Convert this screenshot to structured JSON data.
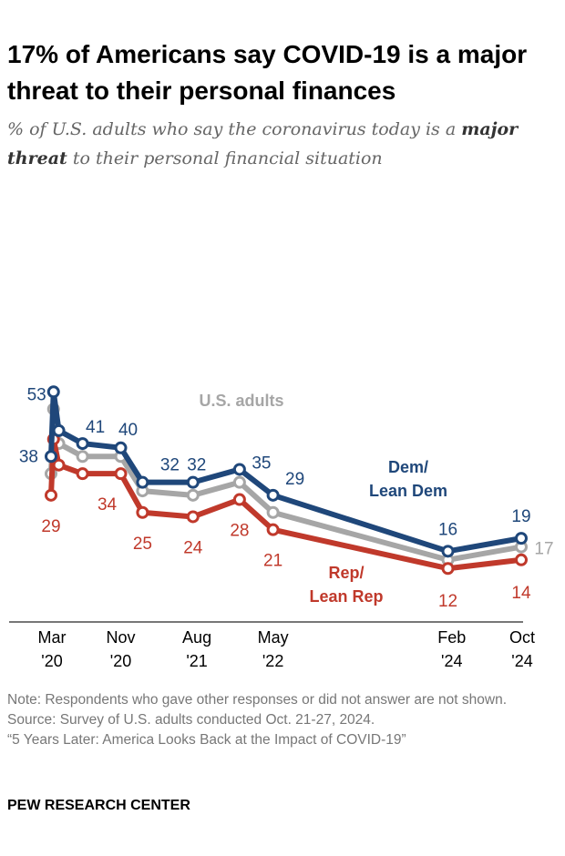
{
  "title": "17% of Americans say COVID-19 is a major threat to their personal finances",
  "subtitle": {
    "part1": "% of U.S. adults who say the coronavirus today is a",
    "bold": "major threat",
    "part2": "to their personal financial situation"
  },
  "chart_data": {
    "type": "line",
    "title": "17% of Americans say COVID-19 is a major threat to their personal finances",
    "x_tick_labels": [
      {
        "date": "2020-03",
        "label": [
          "Mar",
          "'20"
        ]
      },
      {
        "date": "2020-11",
        "label": [
          "Nov",
          "'20"
        ]
      },
      {
        "date": "2021-08",
        "label": [
          "Aug",
          "'21"
        ]
      },
      {
        "date": "2022-05",
        "label": [
          "May",
          "'22"
        ]
      },
      {
        "date": "2024-02",
        "label": [
          "Feb",
          "'24"
        ]
      },
      {
        "date": "2024-10",
        "label": [
          "Oct",
          "'24"
        ]
      }
    ],
    "x": [
      "2020-03-10",
      "2020-03-19",
      "2020-04-07",
      "2020-07-01",
      "2020-11-15",
      "2021-02-01",
      "2021-08-01",
      "2022-01-15",
      "2022-05-15",
      "2024-02-01",
      "2024-10-21"
    ],
    "ylim": [
      0,
      55
    ],
    "grid": false,
    "series": [
      {
        "name": "U.S. adults",
        "color": "#a6a6a6",
        "values": [
          34,
          49,
          41,
          38,
          38,
          30,
          29,
          32,
          25,
          14,
          17
        ],
        "labels": [
          null,
          null,
          null,
          null,
          null,
          null,
          null,
          null,
          null,
          null,
          "17"
        ]
      },
      {
        "name": "Rep/ Lean Rep",
        "color": "#c0392b",
        "values": [
          29,
          42,
          36,
          34,
          34,
          25,
          24,
          28,
          21,
          12,
          14
        ],
        "labels": [
          "29",
          null,
          null,
          null,
          "34",
          "25",
          "24",
          "28",
          "21",
          "12",
          "14"
        ]
      },
      {
        "name": "Dem/ Lean Dem",
        "color": "#1f477a",
        "values": [
          38,
          53,
          44,
          41,
          40,
          32,
          32,
          35,
          29,
          16,
          19
        ],
        "labels": [
          "38",
          "53",
          null,
          "41",
          "40",
          "32",
          "32",
          "35",
          "29",
          "16",
          "19"
        ]
      }
    ],
    "series_labels": {
      "us": "U.S. adults",
      "dem": [
        "Dem/",
        "Lean Dem"
      ],
      "rep": [
        "Rep/",
        "Lean Rep"
      ]
    }
  },
  "notes": {
    "note": "Note: Respondents who gave other responses or did not answer are not shown.",
    "source": "Source: Survey of U.S. adults conducted Oct. 21-27, 2024.",
    "report": "“5 Years Later: America Looks Back at the Impact of COVID-19”"
  },
  "brand": "PEW RESEARCH CENTER"
}
